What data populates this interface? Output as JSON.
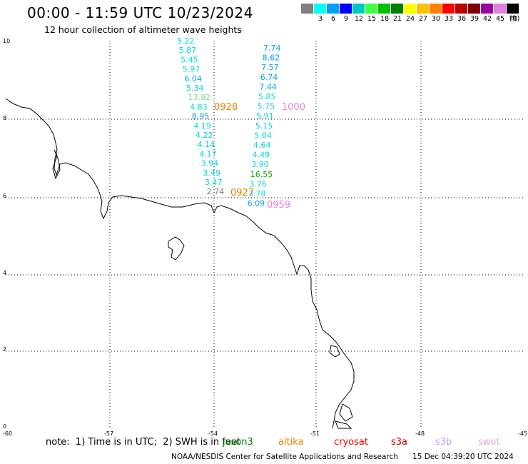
{
  "header": {
    "title": "00:00 - 11:59 UTC 10/23/2024",
    "subtitle": "12 hour collection of altimeter wave heights"
  },
  "color_scale": {
    "unit": "(ft)",
    "swatches": [
      {
        "label": "",
        "color": "#7f7f7f"
      },
      {
        "label": "3",
        "color": "#00ffff"
      },
      {
        "label": "6",
        "color": "#00a0ff"
      },
      {
        "label": "9",
        "color": "#0000ff"
      },
      {
        "label": "12",
        "color": "#00c8c8"
      },
      {
        "label": "15",
        "color": "#40ff40"
      },
      {
        "label": "18",
        "color": "#00c000"
      },
      {
        "label": "21",
        "color": "#008000"
      },
      {
        "label": "24",
        "color": "#ffff00"
      },
      {
        "label": "27",
        "color": "#ffc000"
      },
      {
        "label": "30",
        "color": "#ff8000"
      },
      {
        "label": "33",
        "color": "#ff0000"
      },
      {
        "label": "36",
        "color": "#c00000"
      },
      {
        "label": "39",
        "color": "#800000"
      },
      {
        "label": "42",
        "color": "#a000a0"
      },
      {
        "label": "45",
        "color": "#e080e0"
      },
      {
        "label": "70",
        "color": "#000000"
      }
    ]
  },
  "axes": {
    "x_ticks": [
      "-60",
      "-57",
      "-54",
      "-51",
      "-48",
      "-45"
    ],
    "y_ticks": [
      "0",
      "2",
      "4",
      "6",
      "8",
      "10"
    ]
  },
  "track_west": [
    {
      "text": "5.22",
      "color": "#00d8e0"
    },
    {
      "text": "5.87",
      "color": "#00d8e0"
    },
    {
      "text": "5.45",
      "color": "#00d8e0"
    },
    {
      "text": "5.97",
      "color": "#00d8e0"
    },
    {
      "text": "6.04",
      "color": "#00a0ff"
    },
    {
      "text": "5.34",
      "color": "#00d8e0"
    },
    {
      "text": "13.92",
      "color": "#80e080"
    },
    {
      "text": "4.83",
      "color": "#00d8e0"
    },
    {
      "text": "8.95",
      "color": "#00a0ff"
    },
    {
      "text": "4.19",
      "color": "#00d8e0"
    },
    {
      "text": "4.22",
      "color": "#00d8e0"
    },
    {
      "text": "4.14",
      "color": "#00d8e0"
    },
    {
      "text": "4.17",
      "color": "#00d8e0"
    },
    {
      "text": "3.94",
      "color": "#00d8e0"
    },
    {
      "text": "3.49",
      "color": "#00d8e0"
    },
    {
      "text": "3.47",
      "color": "#00d8e0"
    },
    {
      "text": "2.74",
      "color": "#7f7f7f"
    }
  ],
  "track_east": [
    {
      "text": "7.74",
      "color": "#00a0ff"
    },
    {
      "text": "8.62",
      "color": "#00a0ff"
    },
    {
      "text": "7.57",
      "color": "#00a0ff"
    },
    {
      "text": "6.74",
      "color": "#00a0ff"
    },
    {
      "text": "7.44",
      "color": "#00a0ff"
    },
    {
      "text": "5.85",
      "color": "#00d8e0"
    },
    {
      "text": "5.75",
      "color": "#00d8e0"
    },
    {
      "text": "5.91",
      "color": "#00d8e0"
    },
    {
      "text": "5.15",
      "color": "#00d8e0"
    },
    {
      "text": "5.04",
      "color": "#00d8e0"
    },
    {
      "text": "4.64",
      "color": "#00d8e0"
    },
    {
      "text": "4.49",
      "color": "#00d8e0"
    },
    {
      "text": "3.90",
      "color": "#00d8e0"
    },
    {
      "text": "16.55",
      "color": "#00b000"
    },
    {
      "text": "3.76",
      "color": "#00d8e0"
    },
    {
      "text": "3.78",
      "color": "#00d8e0"
    },
    {
      "text": "6.09",
      "color": "#00a0ff"
    }
  ],
  "pass_labels": [
    {
      "text": "0928",
      "color": "#f08000"
    },
    {
      "text": "1000",
      "color": "#f080e0"
    },
    {
      "text": "0927",
      "color": "#f08000"
    },
    {
      "text": "0959",
      "color": "#f080e0"
    }
  ],
  "footer": {
    "note": "note:  1) Time is in UTC;  2) SWH is in feet",
    "satellites": [
      {
        "name": "jason3",
        "color": "#008000"
      },
      {
        "name": "altika",
        "color": "#f08000"
      },
      {
        "name": "cryosat",
        "color": "#ff0000"
      },
      {
        "name": "s3a",
        "color": "#c00000"
      },
      {
        "name": "s3b",
        "color": "#c0a0f0"
      },
      {
        "name": "swot",
        "color": "#f0a0e0"
      }
    ],
    "credit": "NOAA/NESDIS Center for Satellite Applications and Research      15 Dec 04:39:20 UTC 2024"
  }
}
